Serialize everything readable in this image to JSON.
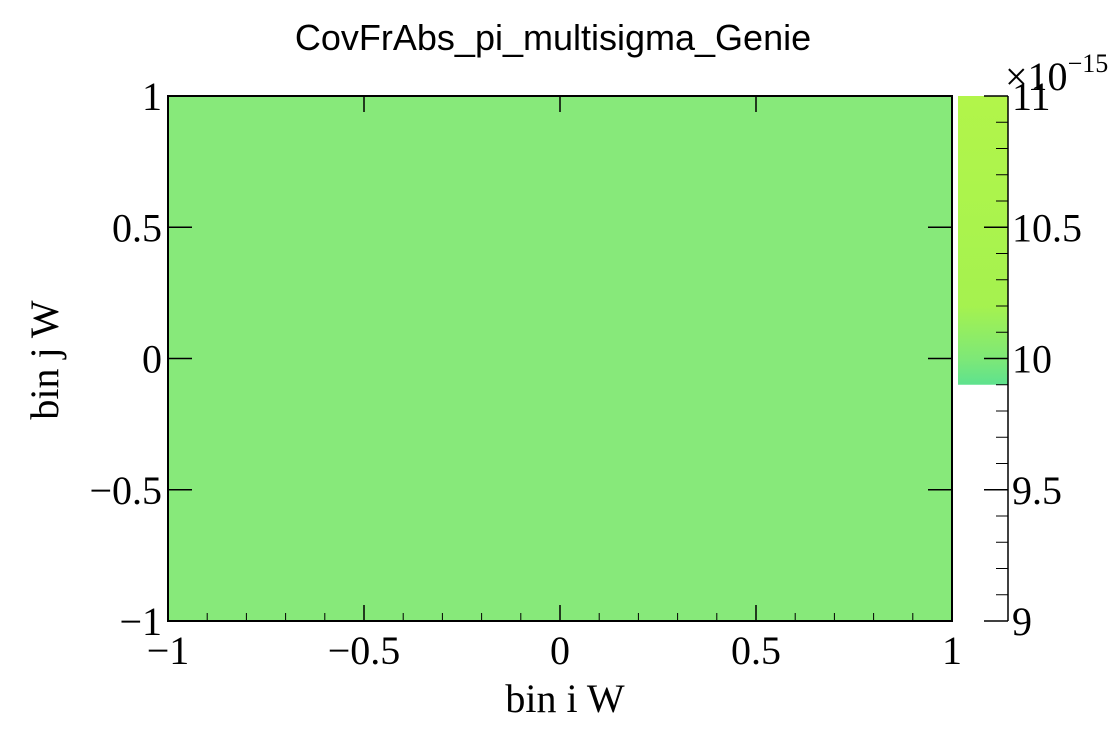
{
  "chart_data": {
    "type": "heatmap",
    "title": "CovFrAbs_pi_multisigma_Genie",
    "xlabel": "bin i W",
    "ylabel": "bin j W",
    "xlim": [
      -1,
      1
    ],
    "ylim": [
      -1,
      1
    ],
    "x_ticks": [
      "−1",
      "−0.5",
      "0",
      "0.5",
      "1"
    ],
    "y_ticks": [
      "−1",
      "−0.5",
      "0",
      "0.5",
      "1"
    ],
    "cells": [
      {
        "x_range": [
          -1,
          1
        ],
        "y_range": [
          -1,
          1
        ],
        "value": 9.95e-15
      }
    ],
    "cell_color": "#87e97a",
    "colorbar": {
      "range": [
        9,
        11
      ],
      "ticks": [
        "9",
        "9.5",
        "10",
        "10.5",
        "11"
      ],
      "exponent_base": "×10",
      "exponent_power": "−15",
      "filled_range": [
        9.9,
        11
      ],
      "gradient": [
        {
          "value": 9.9,
          "color": "#5ee28e"
        },
        {
          "value": 10.0,
          "color": "#7ee877"
        },
        {
          "value": 10.2,
          "color": "#a5f24f"
        },
        {
          "value": 11,
          "color": "#b2f54a"
        }
      ]
    },
    "grid": false,
    "legend": "none"
  }
}
